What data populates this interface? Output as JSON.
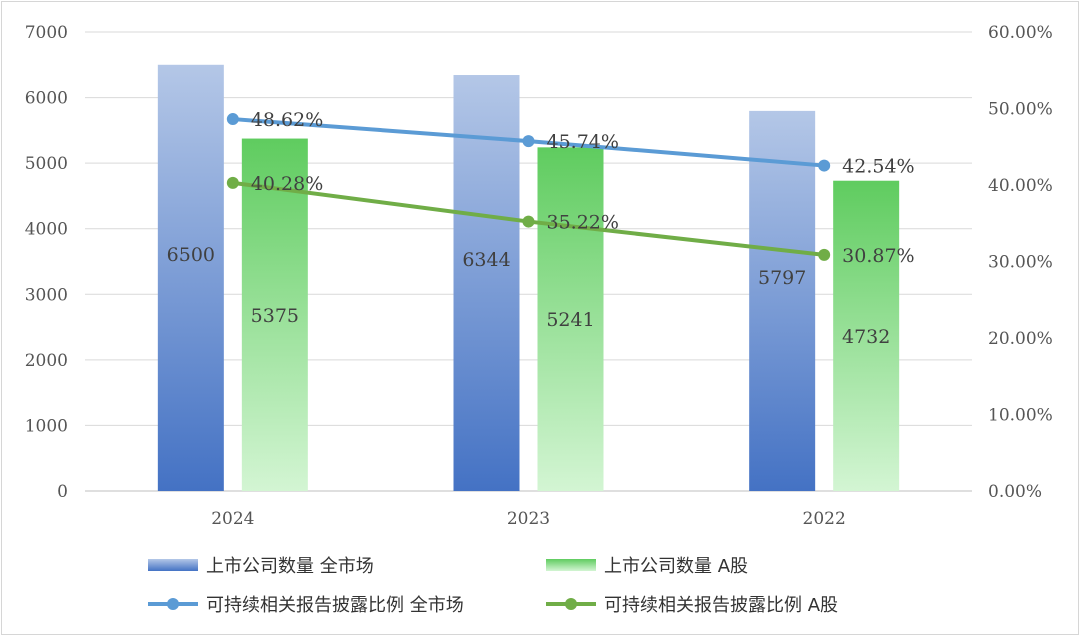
{
  "chart_data": {
    "type": "bar+line",
    "categories": [
      "2024",
      "2023",
      "2022"
    ],
    "bar_series": [
      {
        "name": "上市公司数量 全市场",
        "values": [
          6500,
          6344,
          5797
        ],
        "color_top": "#b4c7e7",
        "color_bottom": "#4472c4"
      },
      {
        "name": "上市公司数量 A股",
        "values": [
          5375,
          5241,
          4732
        ],
        "color_top": "#5fcc5f",
        "color_bottom": "#d3f5d3"
      }
    ],
    "line_series": [
      {
        "name": "可持续相关报告披露比例 全市场",
        "values": [
          48.62,
          45.74,
          42.54
        ],
        "labels": [
          "48.62%",
          "45.74%",
          "42.54%"
        ],
        "color": "#5b9bd5"
      },
      {
        "name": "可持续相关报告披露比例 A股",
        "values": [
          40.28,
          35.22,
          30.87
        ],
        "labels": [
          "40.28%",
          "35.22%",
          "30.87%"
        ],
        "color": "#70ad47"
      }
    ],
    "y_left": {
      "min": 0,
      "max": 7000,
      "ticks": [
        "0",
        "1000",
        "2000",
        "3000",
        "4000",
        "5000",
        "6000",
        "7000"
      ]
    },
    "y_right": {
      "min": 0,
      "max": 60,
      "ticks": [
        "0.00%",
        "10.00%",
        "20.00%",
        "30.00%",
        "40.00%",
        "50.00%",
        "60.00%"
      ]
    },
    "grid": true,
    "legend_position": "bottom"
  }
}
